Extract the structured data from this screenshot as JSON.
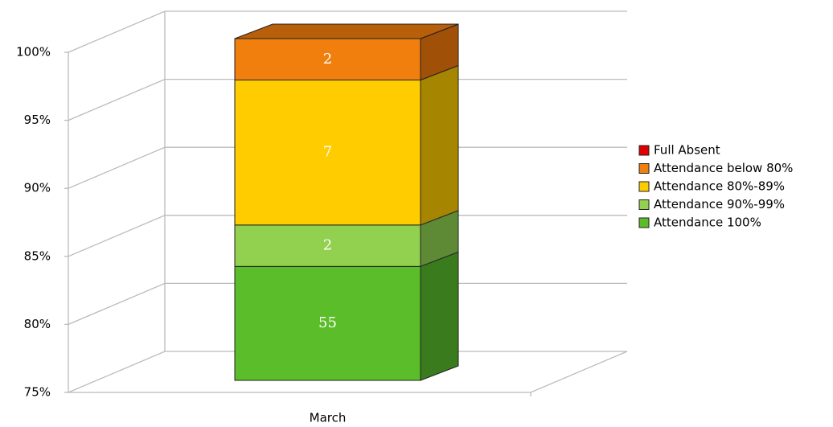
{
  "chart_data": {
    "type": "bar",
    "stacking": "percent",
    "categories": [
      "March"
    ],
    "series": [
      {
        "name": "Attendance 100%",
        "color": "#5cbd2a",
        "side_color": "#3a7b1e",
        "values": [
          55
        ]
      },
      {
        "name": "Attendance 90%-99%",
        "color": "#92d050",
        "side_color": "#5e8a36",
        "values": [
          2
        ]
      },
      {
        "name": "Attendance 80%-89%",
        "color": "#ffcc00",
        "side_color": "#a68600",
        "values": [
          7
        ]
      },
      {
        "name": "Attendance below 80%",
        "color": "#f07f0e",
        "side_color": "#a15008",
        "values": [
          2
        ]
      },
      {
        "name": "Full Absent",
        "color": "#e00000",
        "side_color": "#900000",
        "values": [
          0
        ]
      }
    ],
    "ylim": [
      75,
      100
    ],
    "yticks": [
      {
        "value": 75,
        "label": "75%"
      },
      {
        "value": 80,
        "label": "80%"
      },
      {
        "value": 85,
        "label": "85%"
      },
      {
        "value": 90,
        "label": "90%"
      },
      {
        "value": 95,
        "label": "95%"
      },
      {
        "value": 100,
        "label": "100%"
      }
    ],
    "grid": true,
    "legend": "right"
  }
}
